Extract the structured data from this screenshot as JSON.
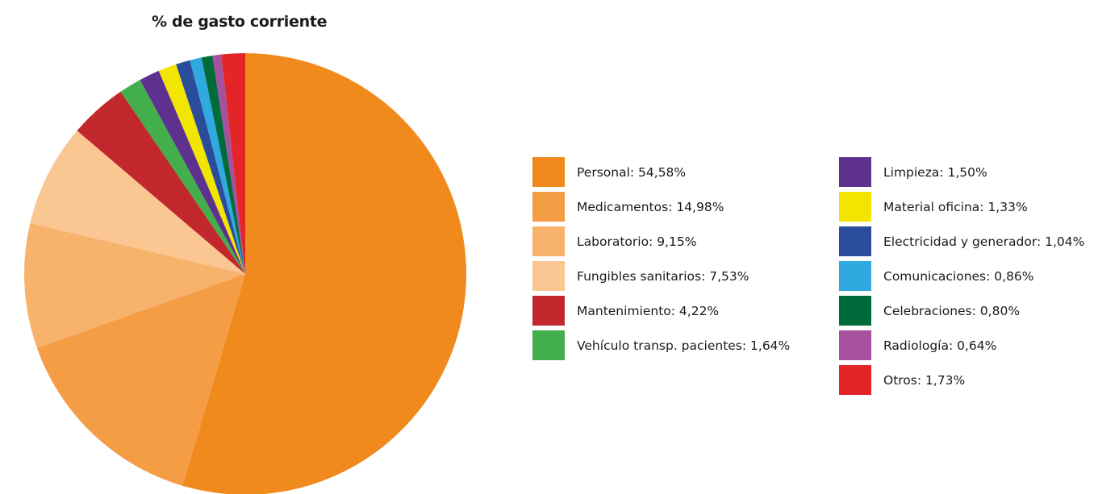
{
  "chart_data": {
    "type": "pie",
    "title": "% de gasto corriente",
    "legend_position": "right",
    "slices": [
      {
        "label": "Personal: 54,58%",
        "value": 54.58,
        "color": "#F18A1C"
      },
      {
        "label": "Medicamentos: 14,98%",
        "value": 14.98,
        "color": "#F49D45"
      },
      {
        "label": "Laboratorio: 9,15%",
        "value": 9.15,
        "color": "#F7B26C"
      },
      {
        "label": "Fungibles sanitarios: 7,53%",
        "value": 7.53,
        "color": "#FAC692"
      },
      {
        "label": "Mantenimiento: 4,22%",
        "value": 4.22,
        "color": "#C1272D"
      },
      {
        "label": "Vehículo transp. pacientes: 1,64%",
        "value": 1.64,
        "color": "#43AE4C"
      },
      {
        "label": "Limpieza: 1,50%",
        "value": 1.5,
        "color": "#5E318E"
      },
      {
        "label": "Material oficina: 1,33%",
        "value": 1.33,
        "color": "#F2E500"
      },
      {
        "label": "Electricidad y generador: 1,04%",
        "value": 1.04,
        "color": "#2B4C9B"
      },
      {
        "label": "Comunicaciones: 0,86%",
        "value": 0.86,
        "color": "#2FA9E0"
      },
      {
        "label": "Celebraciones: 0,80%",
        "value": 0.8,
        "color": "#006B3A"
      },
      {
        "label": "Radiología: 0,64%",
        "value": 0.64,
        "color": "#A5519E"
      },
      {
        "label": "Otros: 1,73%",
        "value": 1.73,
        "color": "#E42527"
      }
    ]
  }
}
